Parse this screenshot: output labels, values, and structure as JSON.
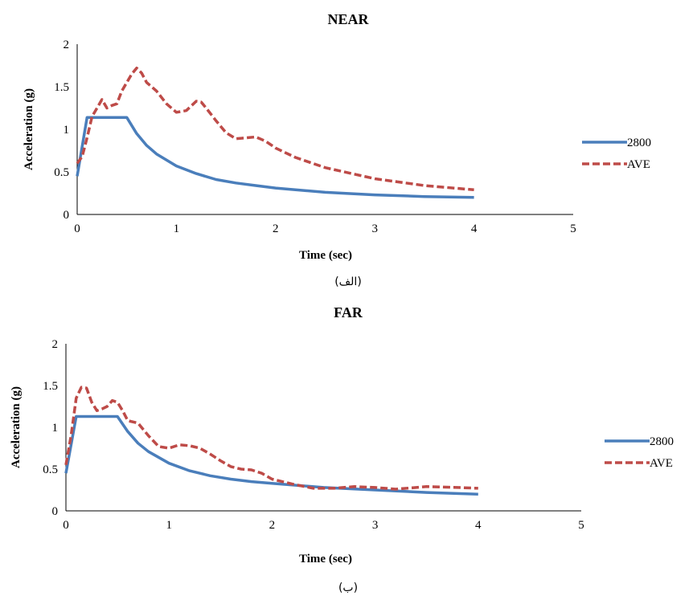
{
  "captions": [
    "(الف)",
    "(ب)"
  ],
  "colors": {
    "series_2800": "#4a7ebb",
    "series_ave": "#be4b48"
  },
  "chart_data": [
    {
      "type": "line",
      "title": "NEAR",
      "xlabel": "Time (sec)",
      "ylabel": "Acceleration (g)",
      "xlim": [
        0,
        5
      ],
      "ylim": [
        0,
        2
      ],
      "xticks": [
        "0",
        "1",
        "2",
        "3",
        "4",
        "5"
      ],
      "yticks": [
        "0",
        "0.5",
        "1",
        "1.5",
        "2"
      ],
      "grid": false,
      "legend": "right",
      "series": [
        {
          "name": "2800",
          "style": "solid",
          "x": [
            0,
            0.1,
            0.5,
            0.6,
            0.7,
            0.8,
            1.0,
            1.2,
            1.4,
            1.6,
            1.8,
            2.0,
            2.5,
            3.0,
            3.5,
            4.0
          ],
          "y": [
            0.45,
            1.14,
            1.14,
            0.95,
            0.81,
            0.71,
            0.57,
            0.48,
            0.41,
            0.37,
            0.34,
            0.31,
            0.26,
            0.23,
            0.21,
            0.2
          ]
        },
        {
          "name": "AVE",
          "style": "dashed",
          "x": [
            0,
            0.05,
            0.1,
            0.15,
            0.2,
            0.25,
            0.3,
            0.35,
            0.4,
            0.45,
            0.5,
            0.55,
            0.6,
            0.65,
            0.7,
            0.8,
            0.9,
            1.0,
            1.1,
            1.2,
            1.25,
            1.3,
            1.4,
            1.5,
            1.6,
            1.7,
            1.8,
            1.9,
            2.0,
            2.2,
            2.5,
            3.0,
            3.5,
            4.0
          ],
          "y": [
            0.6,
            0.68,
            0.9,
            1.15,
            1.25,
            1.35,
            1.25,
            1.28,
            1.3,
            1.45,
            1.55,
            1.65,
            1.72,
            1.66,
            1.55,
            1.45,
            1.3,
            1.2,
            1.22,
            1.33,
            1.32,
            1.25,
            1.1,
            0.96,
            0.89,
            0.9,
            0.91,
            0.86,
            0.78,
            0.67,
            0.55,
            0.42,
            0.34,
            0.29
          ]
        }
      ]
    },
    {
      "type": "line",
      "title": "FAR",
      "xlabel": "Time (sec)",
      "ylabel": "Acceleration (g)",
      "xlim": [
        0,
        5
      ],
      "ylim": [
        0,
        2
      ],
      "xticks": [
        "0",
        "1",
        "2",
        "3",
        "4",
        "5"
      ],
      "yticks": [
        "0",
        "0.5",
        "1",
        "1.5",
        "2"
      ],
      "grid": false,
      "legend": "right",
      "series": [
        {
          "name": "2800",
          "style": "solid",
          "x": [
            0,
            0.1,
            0.5,
            0.6,
            0.7,
            0.8,
            1.0,
            1.2,
            1.4,
            1.6,
            1.8,
            2.0,
            2.5,
            3.0,
            3.5,
            4.0
          ],
          "y": [
            0.45,
            1.13,
            1.13,
            0.95,
            0.81,
            0.71,
            0.57,
            0.48,
            0.42,
            0.38,
            0.35,
            0.33,
            0.28,
            0.25,
            0.22,
            0.2
          ]
        },
        {
          "name": "AVE",
          "style": "dashed",
          "x": [
            0,
            0.05,
            0.1,
            0.15,
            0.2,
            0.25,
            0.3,
            0.35,
            0.4,
            0.45,
            0.5,
            0.55,
            0.6,
            0.7,
            0.8,
            0.9,
            1.0,
            1.1,
            1.2,
            1.3,
            1.4,
            1.5,
            1.6,
            1.7,
            1.8,
            1.9,
            2.0,
            2.2,
            2.4,
            2.6,
            2.8,
            3.0,
            3.2,
            3.5,
            3.8,
            4.0
          ],
          "y": [
            0.55,
            0.9,
            1.35,
            1.48,
            1.47,
            1.3,
            1.2,
            1.22,
            1.25,
            1.32,
            1.3,
            1.2,
            1.08,
            1.05,
            0.9,
            0.77,
            0.75,
            0.79,
            0.78,
            0.75,
            0.68,
            0.6,
            0.53,
            0.5,
            0.49,
            0.45,
            0.38,
            0.32,
            0.27,
            0.27,
            0.29,
            0.28,
            0.26,
            0.29,
            0.28,
            0.27
          ]
        }
      ]
    }
  ]
}
